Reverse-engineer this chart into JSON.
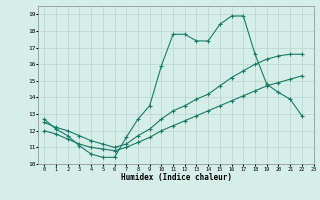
{
  "xlabel": "Humidex (Indice chaleur)",
  "background_color": "#d6eee8",
  "grid_color": "#b8d4ce",
  "line_color": "#1a7a6a",
  "xlim": [
    -0.5,
    23
  ],
  "ylim": [
    10,
    19.5
  ],
  "yticks": [
    10,
    11,
    12,
    13,
    14,
    15,
    16,
    17,
    18,
    19
  ],
  "xticks": [
    0,
    1,
    2,
    3,
    4,
    5,
    6,
    7,
    8,
    9,
    10,
    11,
    12,
    13,
    14,
    15,
    16,
    17,
    18,
    19,
    20,
    21,
    22,
    23
  ],
  "series1_x": [
    0,
    1,
    2,
    3,
    4,
    5,
    6,
    7,
    8,
    9,
    10,
    11,
    12,
    13,
    14,
    15,
    16,
    17,
    18,
    19,
    20,
    21,
    22
  ],
  "series1_y": [
    12.7,
    12.1,
    11.7,
    11.1,
    10.6,
    10.4,
    10.4,
    11.6,
    12.7,
    13.5,
    15.9,
    17.8,
    17.8,
    17.4,
    17.4,
    18.4,
    18.9,
    18.9,
    16.6,
    14.8,
    14.3,
    13.9,
    12.9
  ],
  "series2_x": [
    0,
    1,
    2,
    3,
    4,
    5,
    6,
    7,
    8,
    9,
    10,
    11,
    12,
    13,
    14,
    15,
    16,
    17,
    18,
    19,
    20,
    21,
    22
  ],
  "series2_y": [
    12.5,
    12.2,
    12.0,
    11.7,
    11.4,
    11.2,
    11.0,
    11.2,
    11.7,
    12.1,
    12.7,
    13.2,
    13.5,
    13.9,
    14.2,
    14.7,
    15.2,
    15.6,
    16.0,
    16.3,
    16.5,
    16.6,
    16.6
  ],
  "series3_x": [
    0,
    1,
    2,
    3,
    4,
    5,
    6,
    7,
    8,
    9,
    10,
    11,
    12,
    13,
    14,
    15,
    16,
    17,
    18,
    19,
    20,
    21,
    22
  ],
  "series3_y": [
    12.0,
    11.8,
    11.5,
    11.2,
    11.0,
    10.9,
    10.8,
    11.0,
    11.3,
    11.6,
    12.0,
    12.3,
    12.6,
    12.9,
    13.2,
    13.5,
    13.8,
    14.1,
    14.4,
    14.7,
    14.9,
    15.1,
    15.3
  ]
}
